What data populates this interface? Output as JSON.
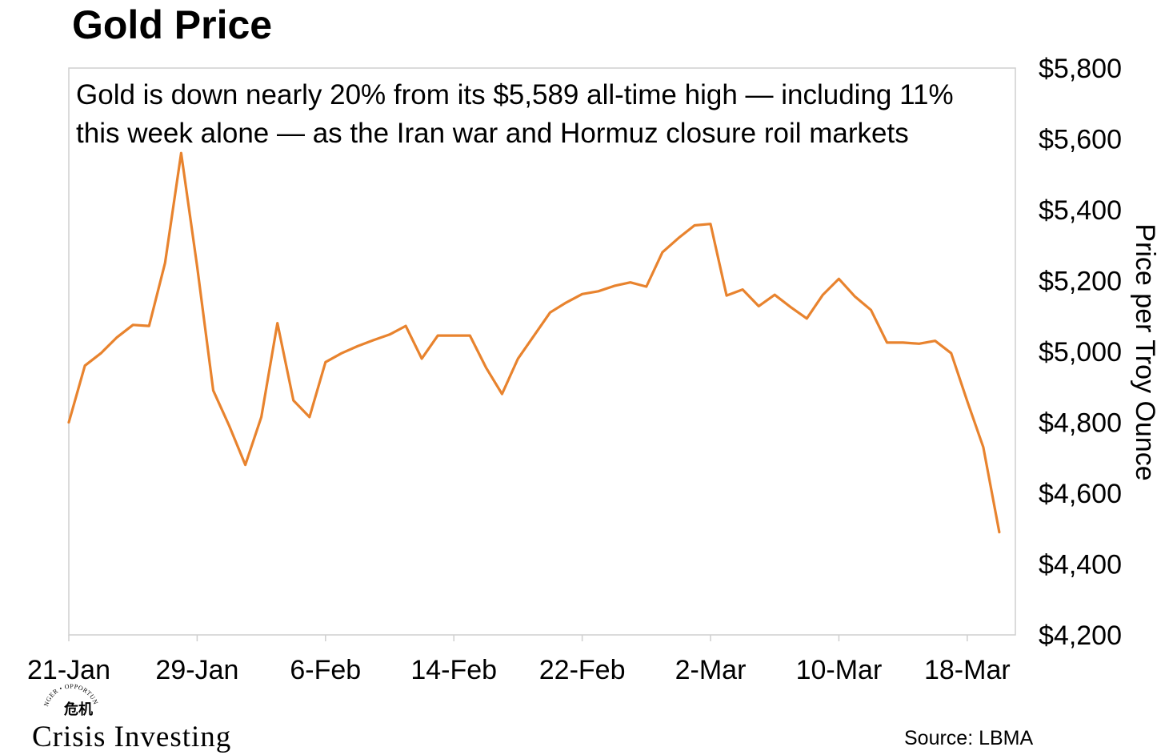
{
  "colors": {
    "line": "#E8832E",
    "frame": "#cfcfcf",
    "text": "#000000"
  },
  "chart_data": {
    "type": "line",
    "title": "Gold Price",
    "annotation": [
      "Gold is down nearly 20% from its $5,589 all-time high — including 11%",
      "this week alone — as the Iran war and Hormuz closure roil markets"
    ],
    "ylabel": "Price per Troy Ounce",
    "ylim": [
      4200,
      5800
    ],
    "y_ticks": [
      4200,
      4400,
      4600,
      4800,
      5000,
      5200,
      5400,
      5600,
      5800
    ],
    "y_tick_labels": [
      "$4,200",
      "$4,400",
      "$4,600",
      "$4,800",
      "$5,000",
      "$5,200",
      "$5,400",
      "$5,600",
      "$5,800"
    ],
    "x_tick_labels": [
      "21-Jan",
      "29-Jan",
      "6-Feb",
      "14-Feb",
      "22-Feb",
      "2-Mar",
      "10-Mar",
      "18-Mar"
    ],
    "x_tick_dates": [
      "2026-01-21",
      "2026-01-29",
      "2026-02-06",
      "2026-02-14",
      "2026-02-22",
      "2026-03-02",
      "2026-03-10",
      "2026-03-18"
    ],
    "xlim": [
      "2026-01-21",
      "2026-03-21"
    ],
    "grid": false,
    "series": [
      {
        "x": [
          "2026-01-21",
          "2026-01-22",
          "2026-01-23",
          "2026-01-24",
          "2026-01-25",
          "2026-01-26",
          "2026-01-27",
          "2026-01-28",
          "2026-01-29",
          "2026-01-30",
          "2026-01-31",
          "2026-02-01",
          "2026-02-02",
          "2026-02-03",
          "2026-02-04",
          "2026-02-05",
          "2026-02-06",
          "2026-02-07",
          "2026-02-08",
          "2026-02-09",
          "2026-02-10",
          "2026-02-11",
          "2026-02-12",
          "2026-02-13",
          "2026-02-14",
          "2026-02-15",
          "2026-02-16",
          "2026-02-17",
          "2026-02-18",
          "2026-02-19",
          "2026-02-20",
          "2026-02-21",
          "2026-02-22",
          "2026-02-23",
          "2026-02-24",
          "2026-02-25",
          "2026-02-26",
          "2026-02-27",
          "2026-02-28",
          "2026-03-01",
          "2026-03-02",
          "2026-03-03",
          "2026-03-04",
          "2026-03-05",
          "2026-03-06",
          "2026-03-07",
          "2026-03-08",
          "2026-03-09",
          "2026-03-10",
          "2026-03-11",
          "2026-03-12",
          "2026-03-13",
          "2026-03-14",
          "2026-03-15",
          "2026-03-16",
          "2026-03-17",
          "2026-03-18",
          "2026-03-19",
          "2026-03-20"
        ],
        "values": [
          4800,
          4960,
          4995,
          5040,
          5075,
          5072,
          5250,
          5560,
          5240,
          4890,
          4790,
          4680,
          4815,
          5080,
          4862,
          4815,
          4970,
          4995,
          5015,
          5032,
          5048,
          5072,
          4980,
          5045,
          5045,
          5045,
          4955,
          4880,
          4980,
          5045,
          5110,
          5138,
          5162,
          5170,
          5185,
          5195,
          5183,
          5280,
          5320,
          5356,
          5360,
          5158,
          5175,
          5128,
          5160,
          5125,
          5093,
          5160,
          5205,
          5155,
          5117,
          5025,
          5025,
          5022,
          5030,
          4995,
          4860,
          4730,
          4490
        ]
      }
    ]
  },
  "source": "Source: LBMA",
  "logo": {
    "name": "Crisis Investing",
    "tagline": "DANGER • OPPORTUNITY"
  }
}
